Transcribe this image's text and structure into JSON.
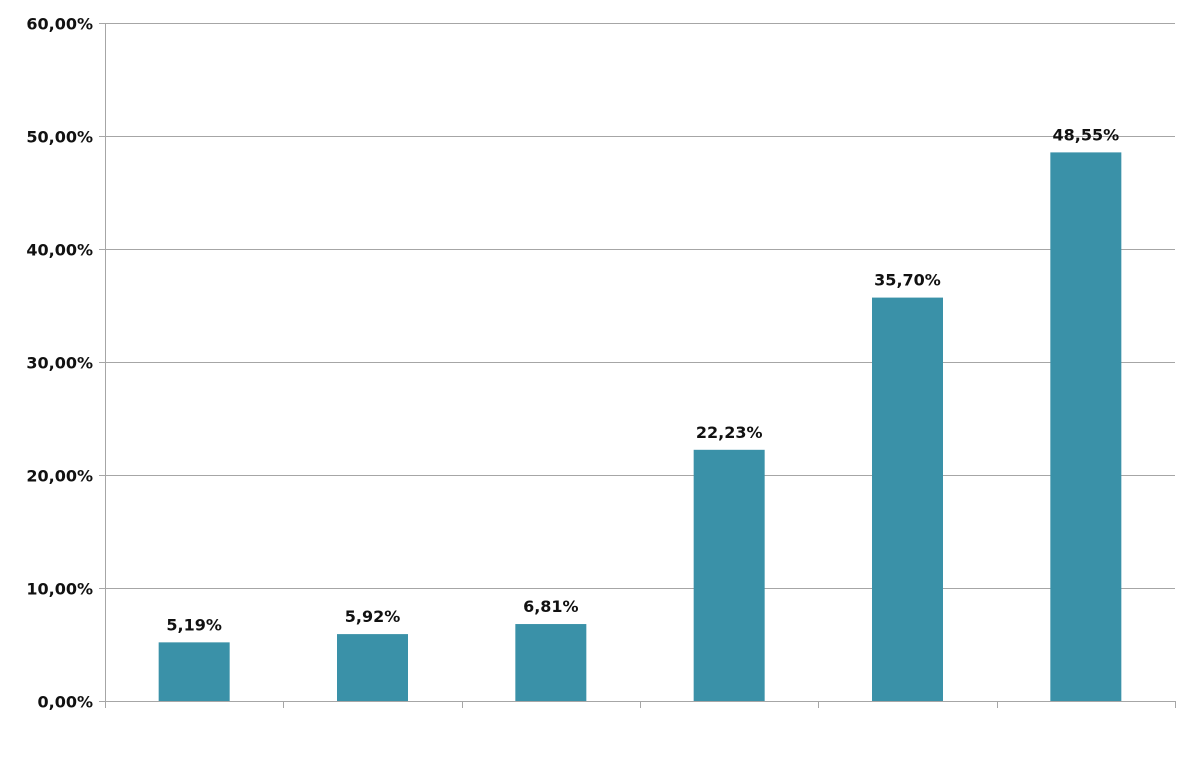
{
  "chart_data": {
    "type": "bar",
    "categories": [
      "",
      "",
      "",
      "",
      "",
      ""
    ],
    "values": [
      5.19,
      5.92,
      6.81,
      22.23,
      35.7,
      48.55
    ],
    "data_labels": [
      "5,19%",
      "5,92%",
      "6,81%",
      "22,23%",
      "35,70%",
      "48,55%"
    ],
    "title": "",
    "xlabel": "",
    "ylabel": "",
    "ylim": [
      0,
      60
    ],
    "y_ticks": [
      0,
      10,
      20,
      30,
      40,
      50,
      60
    ],
    "y_tick_labels": [
      "0,00%",
      "10,00%",
      "20,00%",
      "30,00%",
      "40,00%",
      "50,00%",
      "60,00%"
    ],
    "grid": true,
    "legend": "none",
    "bar_color": "#3a91a8",
    "grid_color": "#a6a6a6"
  }
}
